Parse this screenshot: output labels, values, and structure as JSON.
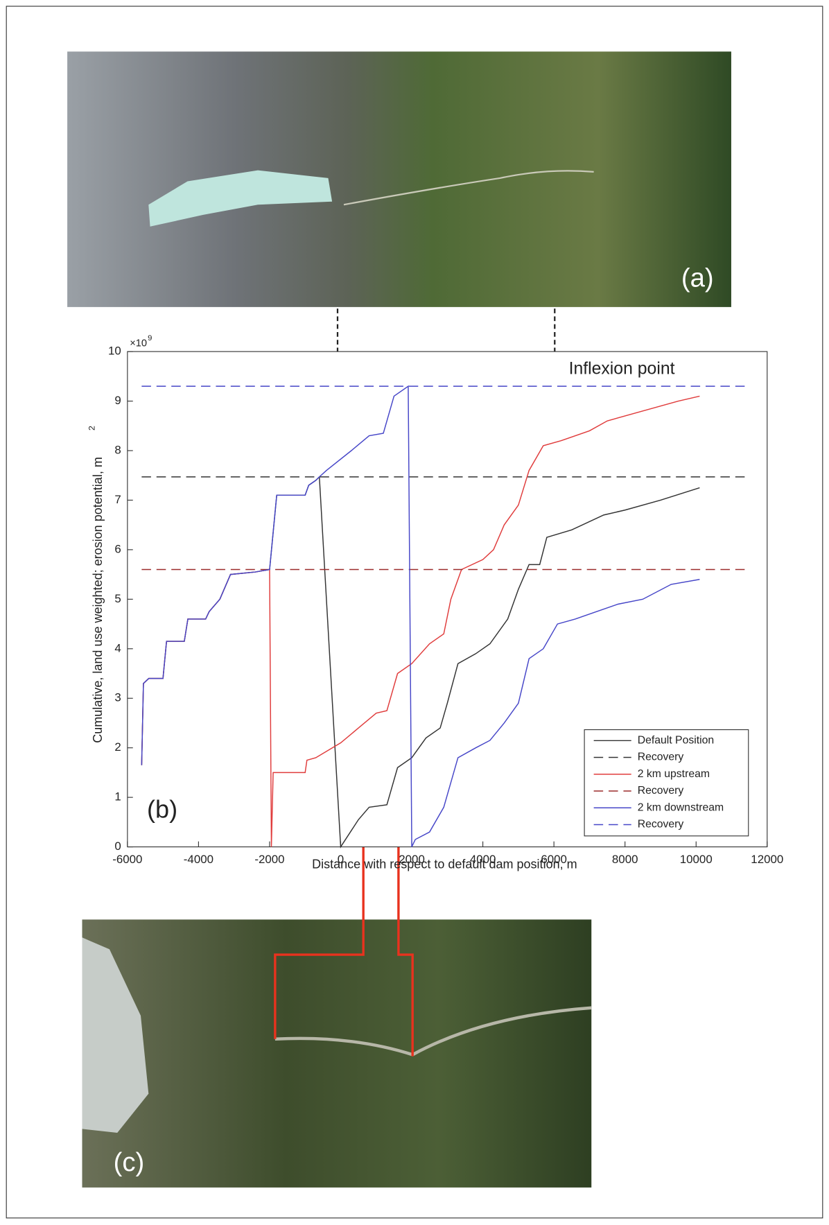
{
  "chart_data": {
    "type": "line",
    "xlabel": "Distance with respect to default dam position, m",
    "ylabel": "Cumulative, land use weighted; erosion potential, m",
    "ylabel_superscript": "2",
    "y_multiplier": {
      "base": "×10",
      "exponent": "9"
    },
    "xlim": [
      -6000,
      12000
    ],
    "xticks": [
      -6000,
      -4000,
      -2000,
      0,
      2000,
      4000,
      6000,
      8000,
      10000,
      12000
    ],
    "ylim": [
      0,
      10
    ],
    "yticks": [
      0,
      1,
      2,
      3,
      4,
      5,
      6,
      7,
      8,
      9,
      10
    ],
    "legend": "lower right",
    "annotations": {
      "inflexion": "Inflexion point",
      "panel_a": "(a)",
      "panel_b": "(b)",
      "panel_c": "(c)"
    },
    "series": [
      {
        "name": "Default Position",
        "color": "#333333",
        "line_style": "solid",
        "x": [
          -5600,
          -5550,
          -5400,
          -5000,
          -4900,
          -4400,
          -4300,
          -3800,
          -3700,
          -3400,
          -3100,
          -2400,
          -2000,
          -1800,
          -1000,
          -900,
          -700,
          -600,
          0,
          500,
          800,
          1300,
          1600,
          2000,
          2400,
          2800,
          3000,
          3300,
          3800,
          4200,
          4700,
          5000,
          5300,
          5600,
          5800,
          6500,
          7400,
          8000,
          9000,
          10100
        ],
        "values": [
          1.65,
          3.3,
          3.4,
          3.4,
          4.15,
          4.15,
          4.6,
          4.6,
          4.75,
          5.0,
          5.5,
          5.55,
          5.6,
          7.1,
          7.1,
          7.3,
          7.4,
          7.47,
          0,
          0.55,
          0.8,
          0.85,
          1.6,
          1.8,
          2.2,
          2.4,
          2.9,
          3.7,
          3.9,
          4.1,
          4.6,
          5.2,
          5.7,
          5.7,
          6.25,
          6.4,
          6.7,
          6.8,
          7.0,
          7.25
        ]
      },
      {
        "name": "Recovery",
        "color": "#333333",
        "line_style": "dashed",
        "x": [
          -5600,
          11500
        ],
        "values": [
          7.47,
          7.47
        ]
      },
      {
        "name": "2 km upstream",
        "color": "#e03c3c",
        "line_style": "solid",
        "x": [
          -5600,
          -5550,
          -5400,
          -5000,
          -4900,
          -4400,
          -4300,
          -3800,
          -3700,
          -3400,
          -3100,
          -2400,
          -2000,
          -1950,
          -1900,
          -1000,
          -950,
          -700,
          0,
          500,
          1000,
          1300,
          1600,
          2000,
          2500,
          2900,
          3100,
          3400,
          4000,
          4300,
          4600,
          5000,
          5300,
          5700,
          6200,
          7000,
          7500,
          8500,
          9500,
          10100
        ],
        "values": [
          1.65,
          3.3,
          3.4,
          3.4,
          4.15,
          4.15,
          4.6,
          4.6,
          4.75,
          5.0,
          5.5,
          5.55,
          5.6,
          0,
          1.5,
          1.5,
          1.75,
          1.8,
          2.1,
          2.4,
          2.7,
          2.75,
          3.5,
          3.7,
          4.1,
          4.3,
          5.0,
          5.6,
          5.8,
          6.0,
          6.5,
          6.9,
          7.6,
          8.1,
          8.2,
          8.4,
          8.6,
          8.8,
          9.0,
          9.1
        ]
      },
      {
        "name": "Recovery",
        "color": "#9b2a2a",
        "line_style": "dashed",
        "x": [
          -5600,
          11500
        ],
        "values": [
          5.6,
          5.6
        ]
      },
      {
        "name": "2 km downstream",
        "color": "#4646c8",
        "line_style": "solid",
        "x": [
          -5600,
          -5550,
          -5400,
          -5000,
          -4900,
          -4400,
          -4300,
          -3800,
          -3700,
          -3400,
          -3100,
          -2400,
          -2000,
          -1800,
          -1000,
          -900,
          -700,
          -600,
          -400,
          300,
          800,
          1200,
          1500,
          1900,
          2000,
          2100,
          2500,
          2900,
          3300,
          3800,
          4200,
          4600,
          5000,
          5300,
          5700,
          6100,
          6600,
          7200,
          7800,
          8500,
          9300,
          10100
        ],
        "values": [
          1.65,
          3.3,
          3.4,
          3.4,
          4.15,
          4.15,
          4.6,
          4.6,
          4.75,
          5.0,
          5.5,
          5.55,
          5.6,
          7.1,
          7.1,
          7.3,
          7.4,
          7.47,
          7.6,
          8.0,
          8.3,
          8.35,
          9.1,
          9.3,
          0,
          0.15,
          0.3,
          0.8,
          1.8,
          2.0,
          2.15,
          2.5,
          2.9,
          3.8,
          4.0,
          4.5,
          4.6,
          4.75,
          4.9,
          5.0,
          5.3,
          5.4
        ]
      },
      {
        "name": "Recovery",
        "color": "#4646c8",
        "line_style": "dashed",
        "x": [
          -5600,
          11500
        ],
        "values": [
          9.3,
          9.3
        ]
      }
    ]
  }
}
